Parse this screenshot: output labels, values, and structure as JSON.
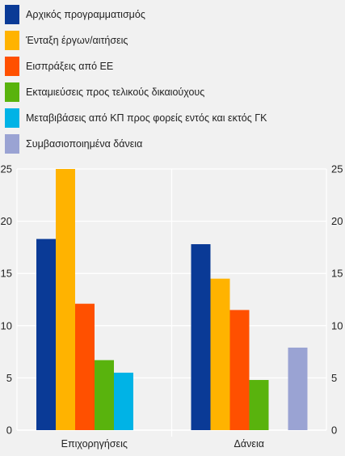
{
  "chart_data": {
    "type": "bar",
    "categories": [
      "Επιχορηγήσεις",
      "Δάνεια"
    ],
    "series": [
      {
        "name": "Αρχικός προγραμματισμός",
        "color": "#0a3a96",
        "values": [
          18.3,
          17.8
        ]
      },
      {
        "name": "Ένταξη έργων/αιτήσεις",
        "color": "#ffb300",
        "values": [
          25.0,
          14.5
        ]
      },
      {
        "name": "Εισπράξεις από ΕΕ",
        "color": "#ff5000",
        "values": [
          12.1,
          11.5
        ]
      },
      {
        "name": "Εκταμιεύσεις προς τελικούς δικαιούχους",
        "color": "#59b30d",
        "values": [
          6.7,
          4.8
        ]
      },
      {
        "name": "Μεταβιβάσεις από ΚΠ προς φορείς εντός και εκτός ΓΚ",
        "color": "#00b3e6",
        "values": [
          5.5,
          null
        ]
      },
      {
        "name": "Συμβασιοποιημένα δάνεια",
        "color": "#9aa3d3",
        "values": [
          null,
          7.9
        ]
      }
    ],
    "ylim": [
      0,
      25
    ],
    "yticks": [
      0,
      5,
      10,
      15,
      20,
      25
    ],
    "legend_position": "top",
    "grid": true
  }
}
